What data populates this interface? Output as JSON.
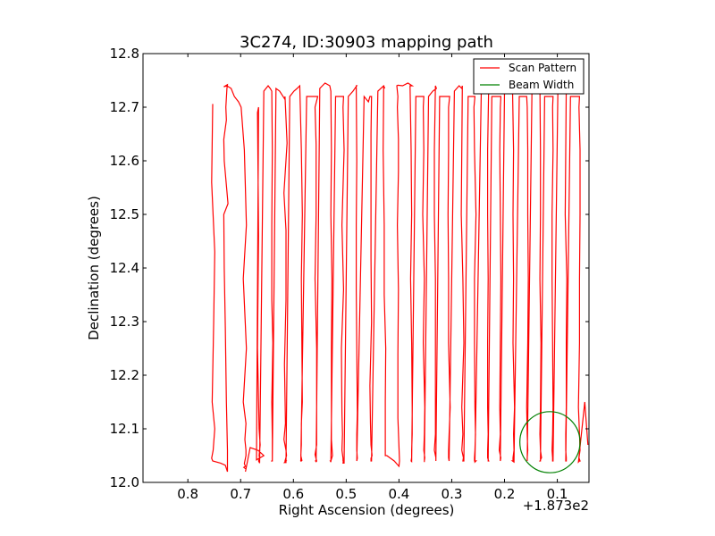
{
  "chart_data": {
    "type": "line",
    "title": "3C274, ID:30903 mapping path",
    "xlabel": "Right Ascension (degrees)",
    "ylabel": "Declination (degrees)",
    "x_offset_label": "+1.873e2",
    "x_inverted": true,
    "xlim": [
      0.885,
      0.04
    ],
    "ylim": [
      12.0,
      12.8
    ],
    "x_ticks": [
      0.8,
      0.7,
      0.6,
      0.5,
      0.4,
      0.3,
      0.2,
      0.1
    ],
    "x_tick_labels": [
      "0.8",
      "0.7",
      "0.6",
      "0.5",
      "0.4",
      "0.3",
      "0.2",
      "0.1"
    ],
    "y_ticks": [
      12.0,
      12.1,
      12.2,
      12.3,
      12.4,
      12.5,
      12.6,
      12.7,
      12.8
    ],
    "y_tick_labels": [
      "12.0",
      "12.1",
      "12.2",
      "12.3",
      "12.4",
      "12.5",
      "12.6",
      "12.7",
      "12.8"
    ],
    "grid": false,
    "legend_position": "top-right",
    "series": [
      {
        "name": "Scan Pattern",
        "color": "#ff0000",
        "x": [
          0.753,
          0.755,
          0.749,
          0.751,
          0.754,
          0.749,
          0.752,
          0.755,
          0.753,
          0.738,
          0.729,
          0.725,
          0.725,
          0.727,
          0.729,
          0.731,
          0.732,
          0.724,
          0.731,
          0.732,
          0.727,
          0.728,
          0.726,
          0.725,
          0.732,
          0.726,
          0.718,
          0.712,
          0.704,
          0.699,
          0.693,
          0.689,
          0.695,
          0.689,
          0.695,
          0.69,
          0.692,
          0.69,
          0.69,
          0.692,
          0.693,
          0.691,
          0.694,
          0.69,
          0.691,
          0.682,
          0.667,
          0.656,
          0.67,
          0.666,
          0.668,
          0.667,
          0.666,
          0.667,
          0.668,
          0.666,
          0.665,
          0.663,
          0.665,
          0.664,
          0.666,
          0.664,
          0.656,
          0.648,
          0.644,
          0.641,
          0.64,
          0.641,
          0.641,
          0.639,
          0.641,
          0.64,
          0.64,
          0.64,
          0.641,
          0.641,
          0.64,
          0.64,
          0.633,
          0.626,
          0.617,
          0.616,
          0.612,
          0.618,
          0.614,
          0.614,
          0.617,
          0.615,
          0.618,
          0.614,
          0.613,
          0.616,
          0.614,
          0.617,
          0.614,
          0.607,
          0.599,
          0.593,
          0.588,
          0.585,
          0.583,
          0.585,
          0.584,
          0.583,
          0.585,
          0.585,
          0.586,
          0.584,
          0.587,
          0.584,
          0.586,
          0.575,
          0.562,
          0.554,
          0.559,
          0.557,
          0.557,
          0.559,
          0.556,
          0.556,
          0.556,
          0.556,
          0.559,
          0.556,
          0.558,
          0.557,
          0.557,
          0.557,
          0.55,
          0.54,
          0.531,
          0.529,
          0.528,
          0.529,
          0.527,
          0.528,
          0.528,
          0.528,
          0.526,
          0.529,
          0.53,
          0.529,
          0.52,
          0.511,
          0.505,
          0.506,
          0.504,
          0.508,
          0.505,
          0.509,
          0.508,
          0.507,
          0.508,
          0.506,
          0.506,
          0.505,
          0.506,
          0.506,
          0.504,
          0.496,
          0.487,
          0.48,
          0.481,
          0.48,
          0.481,
          0.481,
          0.48,
          0.479,
          0.48,
          0.48,
          0.479,
          0.48,
          0.466,
          0.458,
          0.455,
          0.452,
          0.453,
          0.453,
          0.453,
          0.452,
          0.455,
          0.454,
          0.453,
          0.451,
          0.453,
          0.453,
          0.452,
          0.44,
          0.429,
          0.427,
          0.429,
          0.43,
          0.428,
          0.428,
          0.425,
          0.426,
          0.426,
          0.426,
          0.426,
          0.423,
          0.409,
          0.4,
          0.399,
          0.402,
          0.402,
          0.401,
          0.403,
          0.401,
          0.401,
          0.403,
          0.402,
          0.404,
          0.402,
          0.393,
          0.383,
          0.375,
          0.379,
          0.377,
          0.376,
          0.378,
          0.376,
          0.375,
          0.375,
          0.376,
          0.376,
          0.377,
          0.376,
          0.368,
          0.357,
          0.353,
          0.354,
          0.353,
          0.355,
          0.352,
          0.354,
          0.351,
          0.352,
          0.353,
          0.351,
          0.352,
          0.352,
          0.352,
          0.344,
          0.336,
          0.329,
          0.331,
          0.333,
          0.333,
          0.331,
          0.331,
          0.331,
          0.331,
          0.333,
          0.33,
          0.33,
          0.323,
          0.312,
          0.304,
          0.306,
          0.306,
          0.307,
          0.306,
          0.306,
          0.303,
          0.305,
          0.306,
          0.306,
          0.305,
          0.305,
          0.295,
          0.286,
          0.281,
          0.28,
          0.281,
          0.282,
          0.279,
          0.277,
          0.281,
          0.279,
          0.281,
          0.278,
          0.279,
          0.277,
          0.269,
          0.262,
          0.256,
          0.258,
          0.257,
          0.254,
          0.257,
          0.257,
          0.256,
          0.255,
          0.256,
          0.257,
          0.257,
          0.254,
          0.256,
          0.244,
          0.236,
          0.23,
          0.23,
          0.232,
          0.232,
          0.231,
          0.232,
          0.232,
          0.231,
          0.232,
          0.232,
          0.23,
          0.231,
          0.224,
          0.215,
          0.207,
          0.208,
          0.209,
          0.208,
          0.207,
          0.208,
          0.209,
          0.208,
          0.21,
          0.207,
          0.208,
          0.208,
          0.2,
          0.19,
          0.183,
          0.185,
          0.183,
          0.184,
          0.183,
          0.184,
          0.181,
          0.183,
          0.182,
          0.184,
          0.184,
          0.185,
          0.182,
          0.172,
          0.163,
          0.158,
          0.157,
          0.156,
          0.156,
          0.155,
          0.156,
          0.158,
          0.157,
          0.156,
          0.157,
          0.157,
          0.157,
          0.148,
          0.138,
          0.133,
          0.133,
          0.132,
          0.132,
          0.133,
          0.131,
          0.132,
          0.133,
          0.132,
          0.13,
          0.133,
          0.132,
          0.124,
          0.115,
          0.108,
          0.109,
          0.108,
          0.11,
          0.11,
          0.109,
          0.108,
          0.109,
          0.11,
          0.109,
          0.109,
          0.108,
          0.099,
          0.09,
          0.083,
          0.083,
          0.084,
          0.085,
          0.082,
          0.083,
          0.083,
          0.084,
          0.084,
          0.083,
          0.083,
          0.084,
          0.075,
          0.064,
          0.058,
          0.059,
          0.057,
          0.057,
          0.058,
          0.058,
          0.06,
          0.058,
          0.057,
          0.059,
          0.057,
          0.058,
          0.06,
          0.048,
          0.042
        ],
        "y": [
          12.706,
          12.56,
          12.43,
          12.3,
          12.15,
          12.1,
          12.06,
          12.045,
          12.04,
          12.036,
          12.032,
          12.02,
          12.06,
          12.15,
          12.29,
          12.4,
          12.5,
          12.52,
          12.6,
          12.64,
          12.676,
          12.7,
          12.735,
          12.742,
          12.738,
          12.74,
          12.735,
          12.72,
          12.71,
          12.7,
          12.62,
          12.48,
          12.38,
          12.25,
          12.15,
          12.11,
          12.08,
          12.06,
          12.05,
          12.04,
          12.035,
          12.03,
          12.028,
          12.025,
          12.02,
          12.065,
          12.06,
          12.05,
          12.042,
          12.7,
          12.69,
          12.58,
          12.46,
          12.36,
          12.25,
          12.15,
          12.1,
          12.07,
          12.05,
          12.045,
          12.04,
          12.036,
          12.73,
          12.74,
          12.735,
          12.73,
          12.62,
          12.48,
          12.34,
          12.26,
          12.15,
          12.08,
          12.05,
          12.042,
          12.04,
          12.04,
          12.04,
          12.04,
          12.735,
          12.73,
          12.716,
          12.72,
          12.633,
          12.54,
          12.47,
          12.34,
          12.22,
          12.11,
          12.08,
          12.06,
          12.05,
          12.04,
          12.04,
          12.037,
          12.037,
          12.72,
          12.73,
          12.735,
          12.74,
          12.62,
          12.5,
          12.38,
          12.25,
          12.15,
          12.11,
          12.07,
          12.05,
          12.041,
          12.04,
          12.04,
          12.04,
          12.72,
          12.72,
          12.72,
          12.7,
          12.63,
          12.5,
          12.38,
          12.25,
          12.15,
          12.1,
          12.07,
          12.052,
          12.04,
          12.04,
          12.038,
          12.038,
          12.038,
          12.735,
          12.745,
          12.74,
          12.73,
          12.62,
          12.5,
          12.38,
          12.25,
          12.12,
          12.08,
          12.05,
          12.04,
          12.04,
          12.038,
          12.72,
          12.72,
          12.72,
          12.7,
          12.62,
          12.48,
          12.36,
          12.25,
          12.13,
          12.09,
          12.06,
          12.045,
          12.04,
          12.038,
          12.037,
          12.036,
          12.036,
          12.72,
          12.73,
          12.74,
          12.74,
          12.6,
          12.48,
          12.36,
          12.25,
          12.13,
          12.09,
          12.06,
          12.045,
          12.04,
          12.72,
          12.71,
          12.72,
          12.72,
          12.65,
          12.54,
          12.42,
          12.3,
          12.18,
          12.11,
          12.07,
          12.05,
          12.045,
          12.04,
          12.04,
          12.73,
          12.74,
          12.735,
          12.74,
          12.62,
          12.48,
          12.35,
          12.25,
          12.15,
          12.1,
          12.07,
          12.05,
          12.05,
          12.04,
          12.03,
          12.04,
          12.12,
          12.24,
          12.36,
          12.48,
          12.58,
          12.64,
          12.7,
          12.72,
          12.74,
          12.741,
          12.74,
          12.745,
          12.74,
          12.74,
          12.62,
          12.5,
          12.38,
          12.26,
          12.14,
          12.09,
          12.06,
          12.046,
          12.04,
          12.039,
          12.72,
          12.72,
          12.72,
          12.7,
          12.62,
          12.5,
          12.38,
          12.26,
          12.14,
          12.09,
          12.06,
          12.046,
          12.04,
          12.04,
          12.038,
          12.72,
          12.73,
          12.735,
          12.74,
          12.62,
          12.5,
          12.38,
          12.26,
          12.14,
          12.09,
          12.06,
          12.046,
          12.04,
          12.72,
          12.72,
          12.72,
          12.7,
          12.62,
          12.5,
          12.38,
          12.26,
          12.14,
          12.09,
          12.06,
          12.046,
          12.04,
          12.04,
          12.73,
          12.74,
          12.735,
          12.74,
          12.62,
          12.5,
          12.38,
          12.26,
          12.14,
          12.09,
          12.06,
          12.046,
          12.04,
          12.04,
          12.72,
          12.72,
          12.72,
          12.7,
          12.62,
          12.5,
          12.38,
          12.26,
          12.14,
          12.09,
          12.06,
          12.046,
          12.04,
          12.04,
          12.038,
          12.73,
          12.74,
          12.735,
          12.74,
          12.62,
          12.5,
          12.38,
          12.26,
          12.14,
          12.09,
          12.06,
          12.046,
          12.04,
          12.04,
          12.72,
          12.72,
          12.72,
          12.7,
          12.62,
          12.5,
          12.38,
          12.26,
          12.14,
          12.09,
          12.06,
          12.046,
          12.04,
          12.04,
          12.73,
          12.74,
          12.735,
          12.74,
          12.62,
          12.5,
          12.38,
          12.26,
          12.14,
          12.09,
          12.06,
          12.046,
          12.04,
          12.04,
          12.038,
          12.72,
          12.72,
          12.72,
          12.7,
          12.62,
          12.5,
          12.38,
          12.26,
          12.14,
          12.09,
          12.06,
          12.046,
          12.04,
          12.04,
          12.73,
          12.74,
          12.735,
          12.74,
          12.62,
          12.5,
          12.38,
          12.26,
          12.14,
          12.09,
          12.06,
          12.046,
          12.04,
          12.04,
          12.72,
          12.72,
          12.72,
          12.7,
          12.62,
          12.5,
          12.38,
          12.26,
          12.14,
          12.09,
          12.06,
          12.046,
          12.04,
          12.04,
          12.73,
          12.74,
          12.735,
          12.74,
          12.62,
          12.5,
          12.38,
          12.26,
          12.14,
          12.09,
          12.06,
          12.046,
          12.04,
          12.04,
          12.72,
          12.72,
          12.72,
          12.7,
          12.62,
          12.5,
          12.38,
          12.26,
          12.14,
          12.09,
          12.06,
          12.046,
          12.04,
          12.04,
          12.038,
          12.15,
          12.07
        ]
      },
      {
        "name": "Beam Width",
        "color": "#008000",
        "shape": "circle",
        "center": [
          0.114,
          12.075
        ],
        "radius_x": 0.057,
        "radius_y": 0.057
      }
    ]
  }
}
